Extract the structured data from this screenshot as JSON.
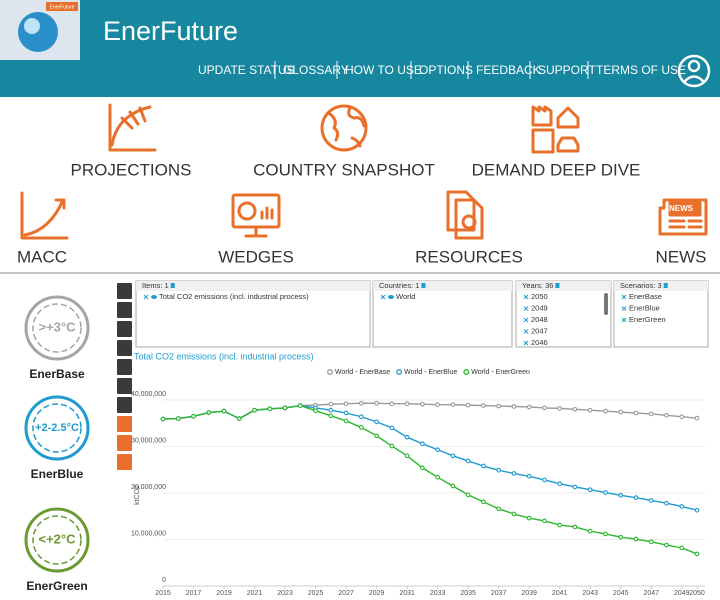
{
  "header": {
    "title": "EnerFuture",
    "logo_text": "EnerFuture",
    "nav": [
      "UPDATE STATUS",
      "GLOSSARY",
      "HOW TO USE",
      "OPTIONS",
      "FEEDBACK",
      "SUPPORT",
      "TERMS OF USE"
    ]
  },
  "tiles": [
    "PROJECTIONS",
    "COUNTRY SNAPSHOT",
    "DEMAND DEEP DIVE",
    "MACC",
    "WEDGES",
    "RESOURCES",
    "NEWS"
  ],
  "scenarios": [
    {
      "badge": ">+3°C",
      "name": "EnerBase"
    },
    {
      "badge": "+2-2.5°C",
      "name": "EnerBlue"
    },
    {
      "badge": "<+2°C",
      "name": "EnerGreen"
    }
  ],
  "filters": [
    {
      "header": "Items: 1",
      "items": [
        "Total CO2 emissions (incl. industrial process)"
      ]
    },
    {
      "header": "Countries: 1",
      "items": [
        "World"
      ]
    },
    {
      "header": "Years: 36",
      "items": [
        "2050",
        "2049",
        "2048",
        "2047",
        "2046"
      ]
    },
    {
      "header": "Scenarios: 3",
      "items": [
        "EnerBase",
        "EnerBlue",
        "EnerGreen"
      ]
    }
  ],
  "chart_data": {
    "type": "line",
    "title": "Total CO2 emissions (incl. industrial process)",
    "y_label": "ktCO2",
    "legend": "top",
    "x": [
      2015,
      2016,
      2017,
      2018,
      2019,
      2020,
      2021,
      2022,
      2023,
      2024,
      2025,
      2026,
      2027,
      2028,
      2029,
      2030,
      2031,
      2032,
      2033,
      2034,
      2035,
      2036,
      2037,
      2038,
      2039,
      2040,
      2041,
      2042,
      2043,
      2044,
      2045,
      2046,
      2047,
      2048,
      2049,
      2050
    ],
    "series": [
      {
        "name": "World - EnerBase",
        "color": "#9a9a9a",
        "values": [
          35900000,
          36000000,
          36500000,
          37300000,
          37600000,
          36000000,
          37800000,
          38100000,
          38300000,
          38800000,
          38900000,
          39100000,
          39200000,
          39300000,
          39300000,
          39200000,
          39200000,
          39100000,
          39000000,
          39000000,
          38900000,
          38800000,
          38700000,
          38600000,
          38500000,
          38300000,
          38200000,
          38000000,
          37800000,
          37600000,
          37400000,
          37200000,
          37000000,
          36700000,
          36400000,
          36100000
        ]
      },
      {
        "name": "World - EnerBlue",
        "color": "#1f9bcf",
        "values": [
          35900000,
          36000000,
          36500000,
          37300000,
          37600000,
          36000000,
          37800000,
          38100000,
          38300000,
          38800000,
          38300000,
          37800000,
          37200000,
          36400000,
          35300000,
          34000000,
          32000000,
          30600000,
          29300000,
          28000000,
          26900000,
          25800000,
          24900000,
          24200000,
          23600000,
          22800000,
          22000000,
          21300000,
          20700000,
          20100000,
          19500000,
          19000000,
          18400000,
          17800000,
          17100000,
          16300000
        ]
      },
      {
        "name": "World - EnerGreen",
        "color": "#2db82d",
        "values": [
          35900000,
          36000000,
          36500000,
          37300000,
          37600000,
          36000000,
          37800000,
          38100000,
          38300000,
          38800000,
          37700000,
          36600000,
          35500000,
          34100000,
          32300000,
          30100000,
          28000000,
          25400000,
          23400000,
          21500000,
          19600000,
          18100000,
          16600000,
          15500000,
          14600000,
          14000000,
          13100000,
          12700000,
          11800000,
          11200000,
          10500000,
          10100000,
          9500000,
          8800000,
          8200000,
          6900000
        ]
      }
    ],
    "xlim": [
      2015,
      2050
    ],
    "xticks": [
      2015,
      2017,
      2019,
      2021,
      2023,
      2025,
      2027,
      2029,
      2031,
      2033,
      2035,
      2037,
      2039,
      2041,
      2043,
      2045,
      2047,
      2049,
      2050
    ],
    "ylim": [
      0,
      40000000
    ],
    "yticks": [
      0,
      {
        "value": 10000000,
        "label": "10,000,000"
      },
      {
        "value": 20000000,
        "label": "20,000,000"
      },
      {
        "value": 30000000,
        "label": "30,000,000"
      },
      {
        "value": 40000000,
        "label": "40,000,000"
      }
    ],
    "grid": true
  }
}
